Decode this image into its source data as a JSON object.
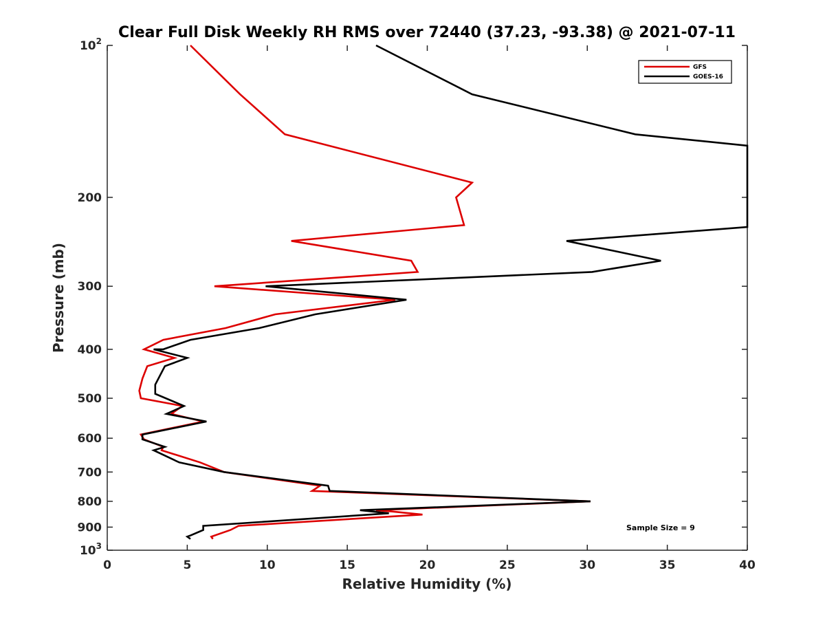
{
  "chart_data": {
    "type": "line",
    "title": "Clear Full Disk Weekly RH RMS over 72440 (37.23, -93.38) @ 2021-07-11",
    "xlabel": "Relative Humidity (%)",
    "ylabel": "Pressure (mb)",
    "xlim": [
      0,
      40
    ],
    "ylim": [
      100,
      1000
    ],
    "y_scale": "log",
    "y_reversed": true,
    "grid": false,
    "legend_position": "top-right",
    "x_ticks": [
      0,
      5,
      10,
      15,
      20,
      25,
      30,
      35,
      40
    ],
    "x_tick_labels": [
      "0",
      "5",
      "10",
      "15",
      "20",
      "25",
      "30",
      "35",
      "40"
    ],
    "y_ticks": [
      100,
      200,
      300,
      400,
      500,
      600,
      700,
      800,
      900,
      1000
    ],
    "y_tick_labels": [
      {
        "base": "10",
        "exp": "2"
      },
      {
        "base": "200",
        "exp": ""
      },
      {
        "base": "300",
        "exp": ""
      },
      {
        "base": "400",
        "exp": ""
      },
      {
        "base": "500",
        "exp": ""
      },
      {
        "base": "600",
        "exp": ""
      },
      {
        "base": "700",
        "exp": ""
      },
      {
        "base": "800",
        "exp": ""
      },
      {
        "base": "900",
        "exp": ""
      },
      {
        "base": "10",
        "exp": "3"
      }
    ],
    "annotation": "Sample Size = 9",
    "series": [
      {
        "name": "GFS",
        "color": "#dd0000",
        "points": [
          [
            5.2,
            100
          ],
          [
            8.3,
            125
          ],
          [
            11.1,
            150
          ],
          [
            22.8,
            187
          ],
          [
            21.8,
            200
          ],
          [
            22.3,
            227
          ],
          [
            11.5,
            244
          ],
          [
            19.0,
            267
          ],
          [
            19.4,
            281
          ],
          [
            6.7,
            300
          ],
          [
            18.0,
            319
          ],
          [
            10.5,
            341
          ],
          [
            7.4,
            363
          ],
          [
            3.5,
            383
          ],
          [
            2.3,
            400
          ],
          [
            4.2,
            416
          ],
          [
            2.5,
            432
          ],
          [
            2.2,
            457
          ],
          [
            2.0,
            483
          ],
          [
            2.1,
            500
          ],
          [
            4.7,
            518
          ],
          [
            4.0,
            537
          ],
          [
            6.0,
            556
          ],
          [
            2.1,
            590
          ],
          [
            2.3,
            603
          ],
          [
            3.5,
            624
          ],
          [
            3.4,
            634
          ],
          [
            5.8,
            670
          ],
          [
            7.3,
            700
          ],
          [
            13.3,
            745
          ],
          [
            12.8,
            763
          ],
          [
            30.2,
            800
          ],
          [
            16.8,
            833
          ],
          [
            17.8,
            838
          ],
          [
            19.7,
            850
          ],
          [
            8.2,
            895
          ],
          [
            7.7,
            912
          ],
          [
            6.5,
            940
          ],
          [
            6.6,
            950
          ]
        ]
      },
      {
        "name": "GOES-16",
        "color": "#000000",
        "points": [
          [
            16.8,
            100
          ],
          [
            22.8,
            125
          ],
          [
            33.0,
            150
          ],
          [
            40.0,
            158
          ],
          [
            40.0,
            229
          ],
          [
            28.7,
            244
          ],
          [
            34.6,
            267
          ],
          [
            30.3,
            281
          ],
          [
            9.9,
            300
          ],
          [
            18.7,
            319
          ],
          [
            13.0,
            341
          ],
          [
            9.5,
            363
          ],
          [
            5.2,
            383
          ],
          [
            3.5,
            400
          ],
          [
            2.9,
            400
          ],
          [
            5.0,
            416
          ],
          [
            3.6,
            432
          ],
          [
            3.0,
            470
          ],
          [
            3.0,
            490
          ],
          [
            4.8,
            518
          ],
          [
            3.7,
            537
          ],
          [
            6.2,
            556
          ],
          [
            2.2,
            590
          ],
          [
            2.2,
            603
          ],
          [
            3.6,
            624
          ],
          [
            2.9,
            634
          ],
          [
            4.5,
            670
          ],
          [
            7.3,
            700
          ],
          [
            13.8,
            745
          ],
          [
            13.9,
            763
          ],
          [
            30.2,
            800
          ],
          [
            15.8,
            833
          ],
          [
            17.6,
            845
          ],
          [
            6.0,
            895
          ],
          [
            6.0,
            912
          ],
          [
            5.2,
            935
          ],
          [
            5.0,
            940
          ],
          [
            5.2,
            950
          ]
        ]
      }
    ]
  }
}
